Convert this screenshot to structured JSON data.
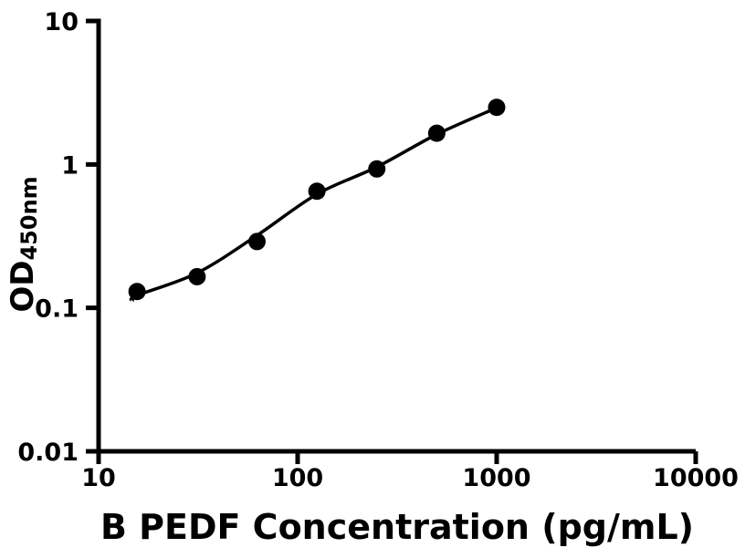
{
  "figure": {
    "background": "#ffffff"
  },
  "chart_data": {
    "type": "scatter",
    "title": "",
    "xlabel": "B PEDF Concentration (pg/mL)",
    "ylabel_main": "OD",
    "ylabel_sub": "450nm",
    "x_scale": "log",
    "y_scale": "log",
    "xlim": [
      10,
      10000
    ],
    "ylim": [
      0.01,
      10
    ],
    "grid": false,
    "legend": "none",
    "xticks": [
      {
        "value": 10,
        "label": "10"
      },
      {
        "value": 100,
        "label": "100"
      },
      {
        "value": 1000,
        "label": "1000"
      },
      {
        "value": 10000,
        "label": "10000"
      }
    ],
    "yticks": [
      {
        "value": 0.01,
        "label": "0.01"
      },
      {
        "value": 0.1,
        "label": "0.1"
      },
      {
        "value": 1,
        "label": "1"
      },
      {
        "value": 10,
        "label": "10"
      }
    ],
    "series": [
      {
        "name": "standard curve data points",
        "marker": "filled-circle",
        "marker_color": "#000000",
        "x": [
          15.6,
          31.25,
          62.5,
          125,
          250,
          500,
          1000
        ],
        "y": [
          0.13,
          0.165,
          0.29,
          0.65,
          0.93,
          1.65,
          2.5
        ]
      }
    ],
    "fit_curve": {
      "name": "fitted standard curve line",
      "color": "#000000",
      "points": [
        [
          14.8,
          0.112
        ],
        [
          15.6,
          0.122
        ],
        [
          31.25,
          0.175
        ],
        [
          62.5,
          0.32
        ],
        [
          125,
          0.62
        ],
        [
          250,
          0.96
        ],
        [
          500,
          1.62
        ],
        [
          1000,
          2.48
        ]
      ]
    },
    "colors": {
      "axis": "#000000",
      "text": "#000000",
      "marker": "#000000",
      "background": "#ffffff"
    }
  }
}
